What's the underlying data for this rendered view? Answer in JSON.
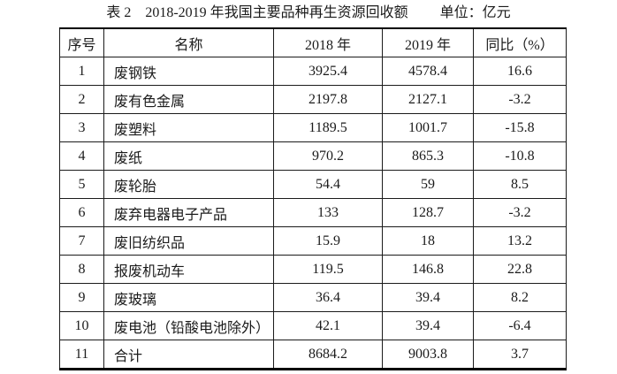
{
  "title": {
    "label": "表 2　2018-2019 年我国主要品种再生资源回收额",
    "unit": "单位：亿元"
  },
  "table": {
    "columns": [
      "序号",
      "名称",
      "2018 年",
      "2019 年",
      "同比（%）"
    ],
    "rows": [
      [
        "1",
        "废钢铁",
        "3925.4",
        "4578.4",
        "16.6"
      ],
      [
        "2",
        "废有色金属",
        "2197.8",
        "2127.1",
        "-3.2"
      ],
      [
        "3",
        "废塑料",
        "1189.5",
        "1001.7",
        "-15.8"
      ],
      [
        "4",
        "废纸",
        "970.2",
        "865.3",
        "-10.8"
      ],
      [
        "5",
        "废轮胎",
        "54.4",
        "59",
        "8.5"
      ],
      [
        "6",
        "废弃电器电子产品",
        "133",
        "128.7",
        "-3.2"
      ],
      [
        "7",
        "废旧纺织品",
        "15.9",
        "18",
        "13.2"
      ],
      [
        "8",
        "报废机动车",
        "119.5",
        "146.8",
        "22.8"
      ],
      [
        "9",
        "废玻璃",
        "36.4",
        "39.4",
        "8.2"
      ],
      [
        "10",
        "废电池（铅酸电池除外）",
        "42.1",
        "39.4",
        "-6.4"
      ],
      [
        "11",
        "合计",
        "8684.2",
        "9003.8",
        "3.7"
      ]
    ]
  }
}
